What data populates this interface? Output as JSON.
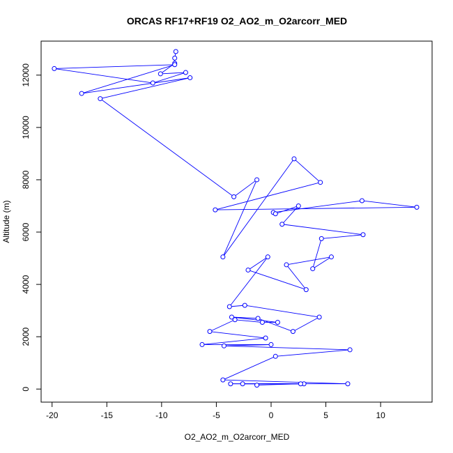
{
  "chart_data": {
    "type": "scatter",
    "title": "ORCAS RF17+RF19 O2_AO2_m_O2arcorr_MED",
    "xlabel": "O2_AO2_m_O2arcorr_MED",
    "ylabel": "Altitude (m)",
    "xlim": [
      -21,
      14.7
    ],
    "ylim": [
      -500,
      13300
    ],
    "xticks": [
      -20,
      -15,
      -10,
      -5,
      0,
      5,
      10
    ],
    "yticks": [
      0,
      2000,
      4000,
      6000,
      8000,
      10000,
      12000
    ],
    "grid": false,
    "legend": "none",
    "color": "#0000ff",
    "connected": true,
    "series": [
      {
        "x": [
          -8.7,
          -8.8,
          -8.8,
          -10.1,
          -7.8,
          -10.8,
          -19.8,
          -8.8,
          -17.3,
          -7.4,
          -15.6,
          -3.4,
          -1.3,
          -4.4,
          2.1,
          4.5,
          -5.1,
          13.3,
          8.3,
          0.2,
          0.4,
          2.5,
          1.0,
          8.4,
          4.6,
          3.8,
          5.5,
          1.4,
          3.2,
          -2.1,
          -0.3,
          -3.8,
          -2.4,
          4.4,
          2.0,
          -1.2,
          -3.6,
          0.6,
          -0.8,
          -3.3,
          -5.6,
          -0.5,
          -6.3,
          0.0,
          -4.3,
          7.2,
          0.4,
          -4.4,
          7.0,
          -3.7,
          3.0,
          -2.6,
          2.7,
          -1.3
        ],
        "y": [
          12900,
          12650,
          12450,
          12050,
          12100,
          11700,
          12250,
          12400,
          11300,
          11900,
          11100,
          7350,
          8000,
          5050,
          8800,
          7900,
          6850,
          6950,
          7200,
          6750,
          6700,
          7000,
          6300,
          5900,
          5750,
          4600,
          5050,
          4750,
          3800,
          4550,
          5050,
          3150,
          3200,
          2750,
          2200,
          2700,
          2750,
          2550,
          2550,
          2650,
          2200,
          1950,
          1700,
          1700,
          1650,
          1500,
          1250,
          350,
          200,
          200,
          200,
          200,
          200,
          150
        ]
      }
    ]
  }
}
